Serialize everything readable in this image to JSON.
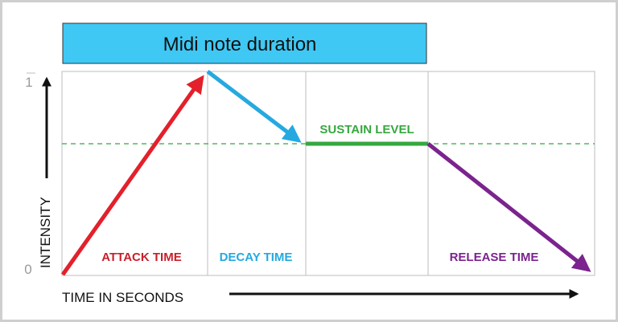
{
  "title": "Midi note duration",
  "y_axis": {
    "label": "INTENSITY",
    "tick_top": "1",
    "tick_bottom": "0"
  },
  "x_axis": {
    "label": "TIME IN SECONDS"
  },
  "phases": [
    {
      "key": "attack",
      "label": "ATTACK TIME",
      "color": "#e3202b"
    },
    {
      "key": "decay",
      "label": "DECAY TIME",
      "color": "#25a9e0"
    },
    {
      "key": "sustain",
      "label": "SUSTAIN LEVEL",
      "color": "#35a83f"
    },
    {
      "key": "release",
      "label": "RELEASE TIME",
      "color": "#7b238e"
    }
  ],
  "colors": {
    "title_bg": "#3fc8f4",
    "frame": "#cfcfcf",
    "grid": "#bdbdbd",
    "sustain_guide": "#35a83f",
    "axis": "#111111"
  }
}
